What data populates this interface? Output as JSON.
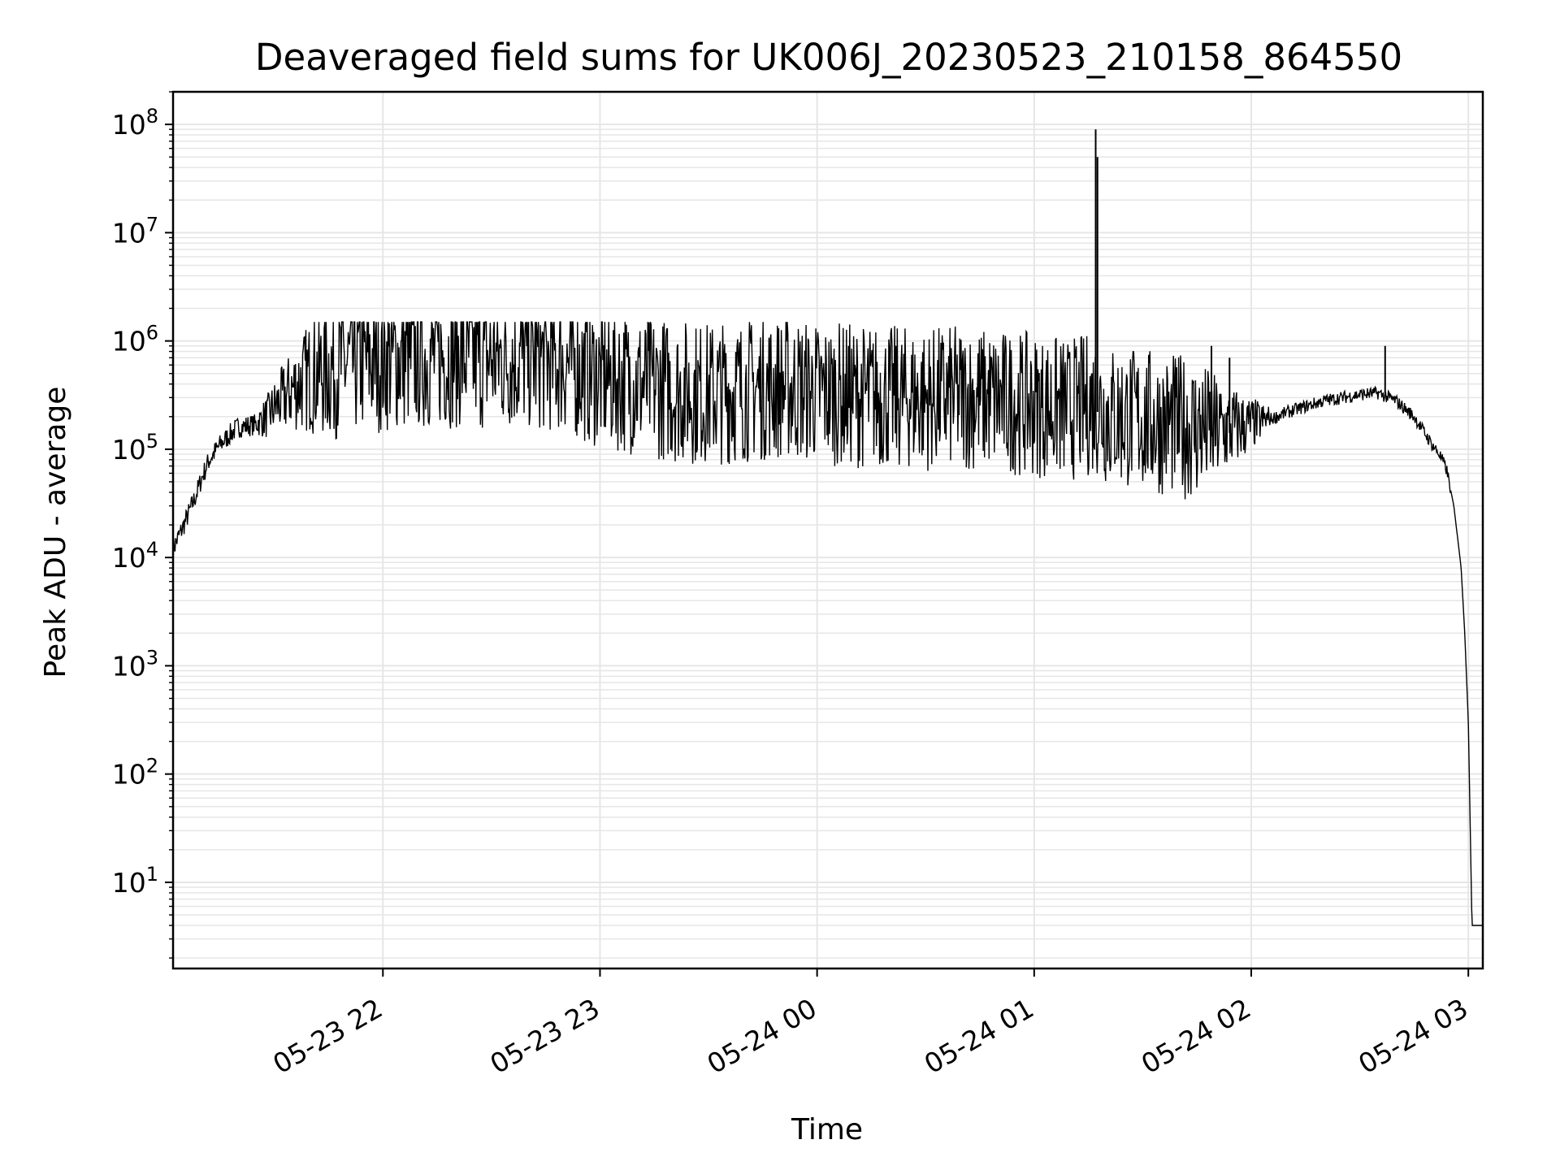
{
  "chart_data": {
    "type": "line",
    "title": "Deaveraged field sums for UK006J_20230523_210158_864550",
    "xlabel": "Time",
    "ylabel": "Peak ADU - average",
    "yscale": "log",
    "ylim": [
      1.6,
      200000000
    ],
    "xlim": [
      "2023-05-23 21:02",
      "2023-05-24 03:04"
    ],
    "grid": true,
    "series_color": "#000000",
    "x_ticks": [
      "05-23 22",
      "05-23 23",
      "05-24 00",
      "05-24 01",
      "05-24 02",
      "05-24 03"
    ],
    "y_ticks": [
      "10^1",
      "10^2",
      "10^3",
      "10^4",
      "10^5",
      "10^6",
      "10^7",
      "10^8"
    ],
    "series": [
      {
        "x": [
          "2023-05-23 21:02",
          "2023-05-23 21:05",
          "2023-05-23 21:08",
          "2023-05-23 21:10",
          "2023-05-23 21:12",
          "2023-05-23 21:15",
          "2023-05-23 21:18",
          "2023-05-23 21:20",
          "2023-05-23 21:23",
          "2023-05-23 21:25",
          "2023-05-23 21:28",
          "2023-05-23 21:30",
          "2023-05-23 21:33",
          "2023-05-23 21:35",
          "2023-05-23 21:38",
          "2023-05-23 21:40",
          "2023-05-23 21:43",
          "2023-05-23 21:45",
          "2023-05-23 21:50",
          "2023-05-23 21:55",
          "2023-05-23 22:00",
          "2023-05-23 22:10",
          "2023-05-23 22:20",
          "2023-05-23 22:30",
          "2023-05-23 22:40",
          "2023-05-23 22:50",
          "2023-05-23 23:00",
          "2023-05-23 23:10",
          "2023-05-23 23:20",
          "2023-05-23 23:30",
          "2023-05-23 23:40",
          "2023-05-23 23:50",
          "2023-05-24 00:00",
          "2023-05-24 00:10",
          "2023-05-24 00:20",
          "2023-05-24 00:30",
          "2023-05-24 00:40",
          "2023-05-24 00:50",
          "2023-05-24 01:00",
          "2023-05-24 01:10",
          "2023-05-24 01:17",
          "2023-05-24 01:20",
          "2023-05-24 01:30",
          "2023-05-24 01:40",
          "2023-05-24 01:50",
          "2023-05-24 02:00",
          "2023-05-24 02:10",
          "2023-05-24 02:20",
          "2023-05-24 02:30",
          "2023-05-24 02:35",
          "2023-05-24 02:40",
          "2023-05-24 02:45",
          "2023-05-24 02:48",
          "2023-05-24 02:50",
          "2023-05-24 02:52",
          "2023-05-24 02:54",
          "2023-05-24 02:56",
          "2023-05-24 02:58",
          "2023-05-24 02:59",
          "2023-05-24 03:00",
          "2023-05-24 03:01",
          "2023-05-24 03:02",
          "2023-05-24 03:04"
        ],
        "y": [
          12000,
          20000,
          35000,
          55000,
          80000,
          110000,
          140000,
          160000,
          165000,
          170000,
          190000,
          230000,
          280000,
          330000,
          380000,
          420000,
          450000,
          480000,
          520000,
          550000,
          570000,
          600000,
          620000,
          580000,
          600000,
          550000,
          400000,
          350000,
          300000,
          280000,
          300000,
          320000,
          290000,
          270000,
          260000,
          250000,
          260000,
          240000,
          220000,
          200000,
          230000,
          180000,
          160000,
          140000,
          130000,
          160000,
          220000,
          280000,
          320000,
          330000,
          280000,
          200000,
          140000,
          110000,
          90000,
          65000,
          30000,
          8000,
          2000,
          300,
          4,
          4,
          4
        ]
      }
    ],
    "noise": {
      "description_range": "spiky region between 05-23 21:25 and 05-24 02:05",
      "high": 1500000,
      "low": 40000
    },
    "spikes": [
      {
        "x": "2023-05-24 01:17",
        "y": 90000000
      },
      {
        "x": "2023-05-24 01:17:30",
        "y": 50000000
      },
      {
        "x": "2023-05-24 02:37",
        "y": 900000
      },
      {
        "x": "2023-05-24 01:49",
        "y": 900000
      },
      {
        "x": "2023-05-24 01:54",
        "y": 700000
      }
    ]
  }
}
